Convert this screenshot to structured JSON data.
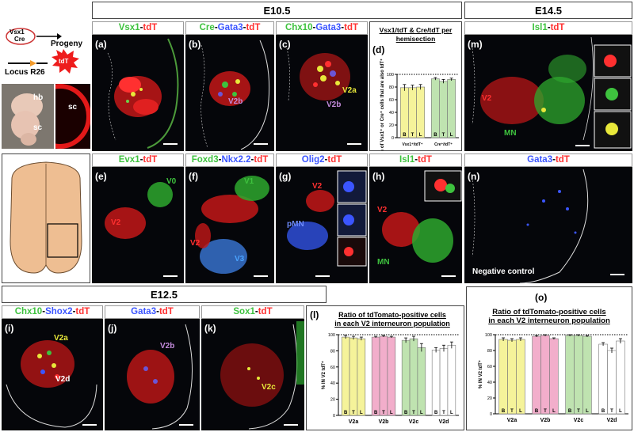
{
  "headers": {
    "e105": "E10.5",
    "e145": "E14.5",
    "e125": "E12.5"
  },
  "schematic": {
    "vsx1": "Vsx1",
    "cre": "Cre",
    "progeny": "Progeny",
    "locus": "Locus R26",
    "tdt": "tdT",
    "hb": "hb",
    "sc": "sc",
    "sc2": "sc"
  },
  "panels": {
    "a": {
      "label": "(a)",
      "t1": "Vsx1",
      "t2": "-",
      "t3": "tdT"
    },
    "b": {
      "label": "(b)",
      "t1": "Cre",
      "t2": "-",
      "t3": "Gata3",
      "t4": "-",
      "t5": "tdT",
      "note": "V2b"
    },
    "c": {
      "label": "(c)",
      "t1": "Chx10",
      "t2": "-",
      "t3": "Gata3",
      "t4": "-",
      "t5": "tdT",
      "note1": "V2a",
      "note2": "V2b"
    },
    "e": {
      "label": "(e)",
      "t1": "Evx1",
      "t2": "-",
      "t3": "tdT",
      "note1": "V0",
      "note2": "V2"
    },
    "f": {
      "label": "(f)",
      "t1": "Foxd3",
      "t2": "-",
      "t3": "Nkx2.2",
      "t4": "-",
      "t5": "tdT",
      "note1": "V1",
      "note2": "V2",
      "note3": "V3"
    },
    "g": {
      "label": "(g)",
      "t1": "Olig2",
      "t2": "-",
      "t3": "tdT",
      "note1": "V2",
      "note2": "pMN"
    },
    "h": {
      "label": "(h)",
      "t1": "Isl1",
      "t2": "-",
      "t3": "tdT",
      "note1": "V2",
      "note2": "MN"
    },
    "m": {
      "label": "(m)",
      "t1": "Isl1",
      "t2": "-",
      "t3": "tdT",
      "note1": "V2",
      "note2": "MN"
    },
    "n": {
      "label": "(n)",
      "t1": "Gata3",
      "t2": "-",
      "t3": "tdT",
      "note1": "Negative control"
    },
    "i": {
      "label": "(i)",
      "t1": "Chx10",
      "t2": "-",
      "t3": "Shox2",
      "t4": "-",
      "t5": "tdT",
      "note1": "V2a",
      "note2": "V2d"
    },
    "j": {
      "label": "(j)",
      "t1": "Gata3",
      "t2": "-",
      "t3": "tdT",
      "note1": "V2b"
    },
    "k": {
      "label": "(k)",
      "t1": "Sox1",
      "t2": "-",
      "t3": "tdT",
      "note1": "V2c"
    }
  },
  "chart_d": {
    "label": "(d)",
    "title1": "Vsx1",
    "title2": "/tdT",
    "title3": " & ",
    "title4": "Cre",
    "title5": "/tdT",
    "title6": " per",
    "title7": "hemisection",
    "ylabel": "% of Vsx1⁺ or Cre⁺ cells that are also tdT⁺",
    "xlabel1": "Vsx1⁺/tdT⁺",
    "xlabel2": "Cre⁺/tdT⁺"
  },
  "chart_l": {
    "label": "(l)",
    "title1": "Ratio of tdTomato-positive cells",
    "title2": "in each V2 interneuron population",
    "ylabel": "% IN V2 tdT⁺"
  },
  "chart_o": {
    "label": "(o)",
    "title1": "Ratio of tdTomato-positive cells",
    "title2": "in each V2 interneuron population",
    "ylabel": "% IN V2 tdT⁺"
  },
  "chart_data": [
    {
      "type": "bar",
      "id": "d",
      "ylim": [
        0,
        100
      ],
      "yticks": [
        0,
        20,
        40,
        60,
        80,
        100
      ],
      "reference_line": 100,
      "groups": [
        {
          "name": "Vsx1⁺/tdT⁺",
          "color": "#f5f39a",
          "bars": [
            {
              "label": "B",
              "value": 79,
              "err": 5
            },
            {
              "label": "T",
              "value": 79,
              "err": 4
            },
            {
              "label": "L",
              "value": 80,
              "err": 4
            }
          ]
        },
        {
          "name": "Cre⁺/tdT⁺",
          "color": "#bfe3b0",
          "bars": [
            {
              "label": "B",
              "value": 93,
              "err": 2
            },
            {
              "label": "T",
              "value": 89,
              "err": 3
            },
            {
              "label": "L",
              "value": 92,
              "err": 2
            }
          ]
        }
      ]
    },
    {
      "type": "bar",
      "id": "l",
      "ylim": [
        0,
        100
      ],
      "yticks": [
        0,
        20,
        40,
        60,
        80,
        100
      ],
      "reference_line": 100,
      "categories": [
        "V2a",
        "V2b",
        "V2c",
        "V2d"
      ],
      "groups": [
        {
          "name": "V2a",
          "color": "#f5f39a",
          "bars": [
            {
              "label": "B",
              "value": 97,
              "err": 2
            },
            {
              "label": "T",
              "value": 96,
              "err": 2
            },
            {
              "label": "L",
              "value": 95,
              "err": 2
            }
          ]
        },
        {
          "name": "V2b",
          "color": "#f2aecb",
          "bars": [
            {
              "label": "B",
              "value": 97,
              "err": 1
            },
            {
              "label": "T",
              "value": 98,
              "err": 1
            },
            {
              "label": "L",
              "value": 97,
              "err": 1
            }
          ]
        },
        {
          "name": "V2c",
          "color": "#bfe3b0",
          "bars": [
            {
              "label": "B",
              "value": 93,
              "err": 3
            },
            {
              "label": "T",
              "value": 95,
              "err": 3
            },
            {
              "label": "L",
              "value": 84,
              "err": 5
            }
          ]
        },
        {
          "name": "V2d",
          "color": "#ffffff",
          "bars": [
            {
              "label": "B",
              "value": 81,
              "err": 3
            },
            {
              "label": "T",
              "value": 83,
              "err": 4
            },
            {
              "label": "L",
              "value": 87,
              "err": 4
            }
          ]
        }
      ]
    },
    {
      "type": "bar",
      "id": "o",
      "ylim": [
        0,
        100
      ],
      "yticks": [
        0,
        20,
        40,
        60,
        80,
        100
      ],
      "reference_line": 100,
      "categories": [
        "V2a",
        "V2b",
        "V2c",
        "V2d"
      ],
      "groups": [
        {
          "name": "V2a",
          "color": "#f5f39a",
          "bars": [
            {
              "label": "B",
              "value": 94,
              "err": 2
            },
            {
              "label": "T",
              "value": 93,
              "err": 2
            },
            {
              "label": "L",
              "value": 94,
              "err": 2
            }
          ]
        },
        {
          "name": "V2b",
          "color": "#f2aecb",
          "bars": [
            {
              "label": "B",
              "value": 98,
              "err": 1
            },
            {
              "label": "T",
              "value": 99,
              "err": 1
            },
            {
              "label": "L",
              "value": 95,
              "err": 1
            }
          ]
        },
        {
          "name": "V2c",
          "color": "#bfe3b0",
          "bars": [
            {
              "label": "B",
              "value": 99,
              "err": 1
            },
            {
              "label": "T",
              "value": 99,
              "err": 1
            },
            {
              "label": "L",
              "value": 98,
              "err": 1
            }
          ]
        },
        {
          "name": "V2d",
          "color": "#ffffff",
          "bars": [
            {
              "label": "B",
              "value": 88,
              "err": 2
            },
            {
              "label": "T",
              "value": 80,
              "err": 3
            },
            {
              "label": "L",
              "value": 92,
              "err": 3
            }
          ]
        }
      ]
    }
  ]
}
